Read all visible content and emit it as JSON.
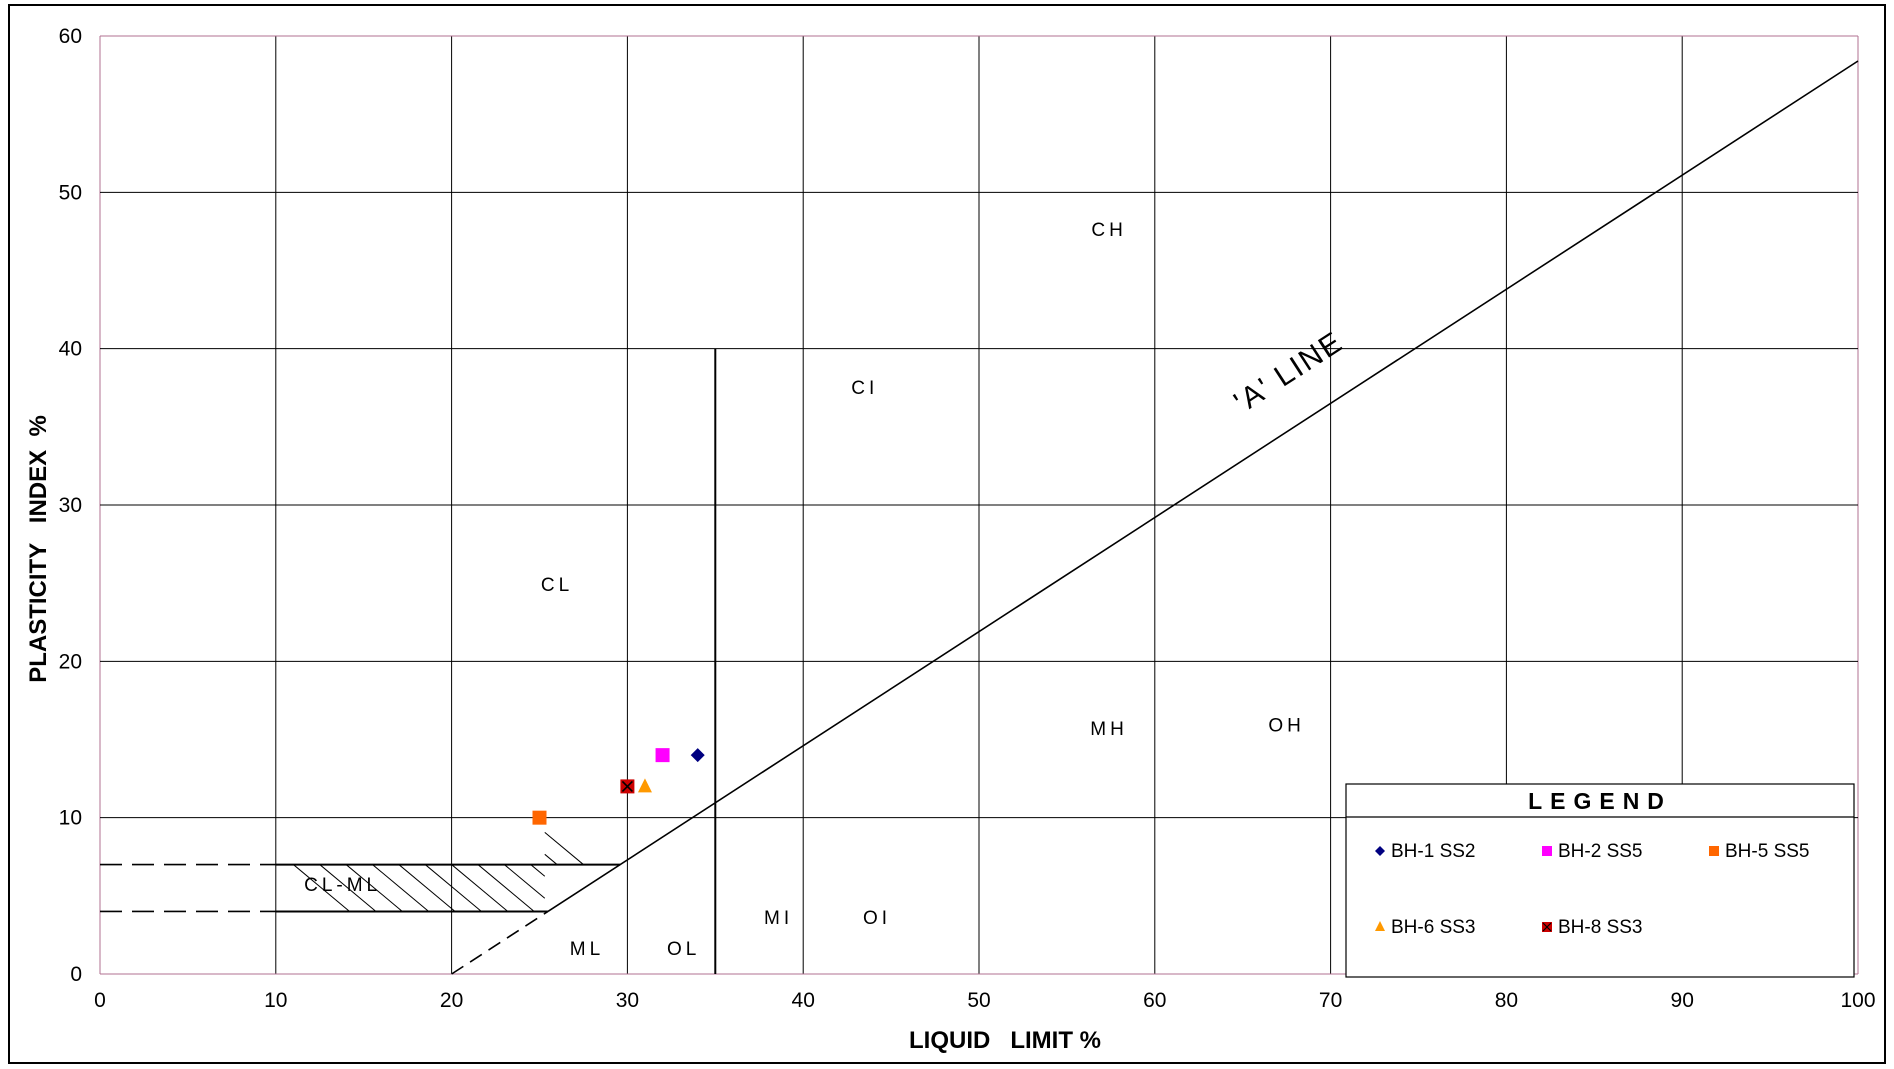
{
  "chart_data": {
    "type": "scatter",
    "title": "",
    "xlabel": "LIQUID   LIMIT %",
    "ylabel": "PLASTICITY   INDEX  %",
    "xlim": [
      0,
      100
    ],
    "ylim": [
      0,
      60
    ],
    "x_ticks": [
      "0",
      "10",
      "20",
      "30",
      "40",
      "50",
      "60",
      "70",
      "80",
      "90",
      "100"
    ],
    "y_ticks": [
      "0",
      "10",
      "20",
      "30",
      "40",
      "50",
      "60"
    ],
    "grid": true,
    "legend_title": "LEGEND",
    "legend_position": "bottom-right",
    "series": [
      {
        "name": "BH-1 SS2",
        "marker": "diamond",
        "color": "#000080",
        "points": [
          [
            34,
            14
          ]
        ]
      },
      {
        "name": "BH-2 SS5",
        "marker": "square",
        "color": "#ff00ff",
        "points": [
          [
            32,
            14
          ]
        ]
      },
      {
        "name": "BH-5 SS5",
        "marker": "square",
        "color": "#ff6600",
        "points": [
          [
            25,
            10
          ]
        ]
      },
      {
        "name": "BH-6 SS3",
        "marker": "triangle",
        "color": "#ff9900",
        "points": [
          [
            31,
            12
          ]
        ]
      },
      {
        "name": "BH-8 SS3",
        "marker": "x-square",
        "color": "#cc0000",
        "points": [
          [
            30,
            12
          ]
        ]
      }
    ],
    "a_line": {
      "label": "'A' LINE",
      "from": [
        0,
        0
      ],
      "to": [
        100,
        58.4
      ]
    },
    "zone_labels": [
      {
        "text": "CH",
        "x": 57.4,
        "y": 47.2
      },
      {
        "text": "CI",
        "x": 43.5,
        "y": 37.1
      },
      {
        "text": "CL",
        "x": 26,
        "y": 24.5
      },
      {
        "text": "MH",
        "x": 57.4,
        "y": 15.3
      },
      {
        "text": "OH",
        "x": 67.5,
        "y": 15.5
      },
      {
        "text": "CL-ML",
        "x": 13.8,
        "y": 5.3
      },
      {
        "text": "MI",
        "x": 38.6,
        "y": 3.2
      },
      {
        "text": "OI",
        "x": 44.2,
        "y": 3.2
      },
      {
        "text": "ML",
        "x": 27.7,
        "y": 1.2
      },
      {
        "text": "OL",
        "x": 33.2,
        "y": 1.2
      }
    ]
  }
}
